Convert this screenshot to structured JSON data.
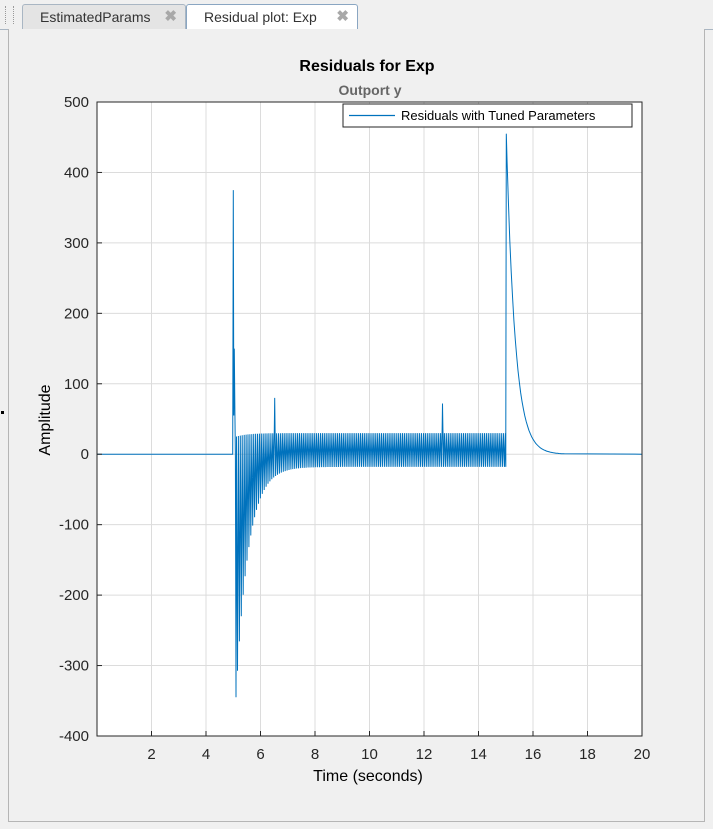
{
  "tabs": [
    {
      "label": "EstimatedParams",
      "active": false,
      "close_icon": "close-icon"
    },
    {
      "label": "Residual plot: Exp",
      "active": true,
      "close_icon": "close-icon"
    }
  ],
  "colors": {
    "series": "#0072bd",
    "grid": "#dcdcdc",
    "axes_bg": "#ffffff"
  },
  "chart_data": {
    "type": "line",
    "title": "Residuals for Exp",
    "subtitle": "Outport y",
    "xlabel": "Time (seconds)",
    "ylabel": "Amplitude",
    "xlim": [
      0,
      20
    ],
    "ylim": [
      -400,
      500
    ],
    "xticks": [
      2,
      4,
      6,
      8,
      10,
      12,
      14,
      16,
      18,
      20
    ],
    "yticks": [
      500,
      400,
      300,
      200,
      100,
      0,
      -100,
      -200,
      -300,
      -400
    ],
    "grid": true,
    "legend": {
      "position": "top-right",
      "entries": [
        "Residuals with Tuned Parameters"
      ]
    },
    "series": [
      {
        "name": "Residuals with Tuned Parameters",
        "color": "#0072bd",
        "description_points": [
          [
            0,
            0
          ],
          [
            4.98,
            0
          ],
          [
            5.0,
            375
          ],
          [
            5.02,
            60
          ],
          [
            5.05,
            150
          ],
          [
            5.08,
            -10
          ],
          [
            5.1,
            -345
          ],
          [
            5.2,
            -240
          ],
          [
            5.4,
            -120
          ],
          [
            5.8,
            -40
          ],
          [
            6.2,
            -20
          ],
          [
            6.5,
            -16
          ],
          [
            6.55,
            80
          ],
          [
            6.6,
            80
          ],
          [
            12.7,
            72
          ],
          [
            15.0,
            30
          ],
          [
            15.02,
            455
          ],
          [
            15.2,
            300
          ],
          [
            15.5,
            140
          ],
          [
            16.0,
            30
          ],
          [
            16.5,
            5
          ],
          [
            17,
            0
          ],
          [
            20,
            0
          ]
        ],
        "oscillation": {
          "x_start": 5.1,
          "x_end": 15.0,
          "upper": 30,
          "lower": -18
        }
      }
    ]
  }
}
